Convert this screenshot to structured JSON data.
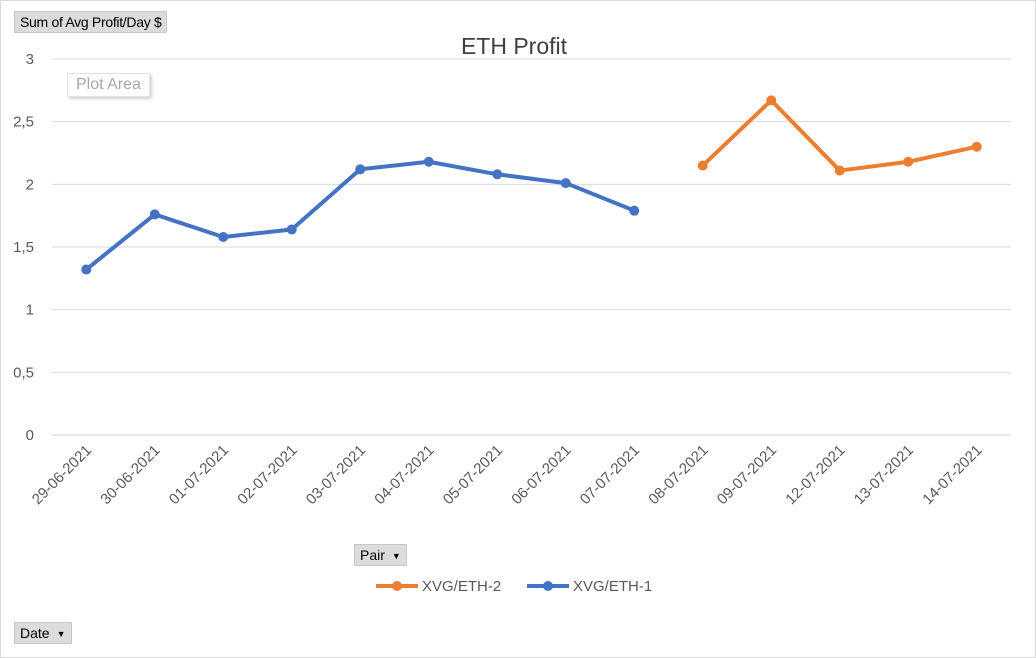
{
  "pivot": {
    "value_field": "Sum of Avg Profit/Day $",
    "legend_field": "Pair",
    "axis_field": "Date"
  },
  "tooltip": "Plot Area",
  "chart_data": {
    "type": "line",
    "title": "ETH Profit",
    "xlabel": "",
    "ylabel": "",
    "categories": [
      "29-06-2021",
      "30-06-2021",
      "01-07-2021",
      "02-07-2021",
      "03-07-2021",
      "04-07-2021",
      "05-07-2021",
      "06-07-2021",
      "07-07-2021",
      "08-07-2021",
      "09-07-2021",
      "12-07-2021",
      "13-07-2021",
      "14-07-2021"
    ],
    "ylim": [
      0,
      3
    ],
    "yticks": [
      "0",
      "0,5",
      "1",
      "1,5",
      "2",
      "2,5",
      "3"
    ],
    "grid": true,
    "legend_position": "bottom",
    "series": [
      {
        "name": "XVG/ETH-2",
        "color": "#ed7d31",
        "values": [
          null,
          null,
          null,
          null,
          null,
          null,
          null,
          null,
          null,
          2.15,
          2.67,
          2.11,
          2.18,
          2.3
        ]
      },
      {
        "name": "XVG/ETH-1",
        "color": "#4472c4",
        "values": [
          1.32,
          1.76,
          1.58,
          1.64,
          2.12,
          2.18,
          2.08,
          2.01,
          1.79,
          null,
          null,
          null,
          null,
          null
        ]
      }
    ]
  }
}
